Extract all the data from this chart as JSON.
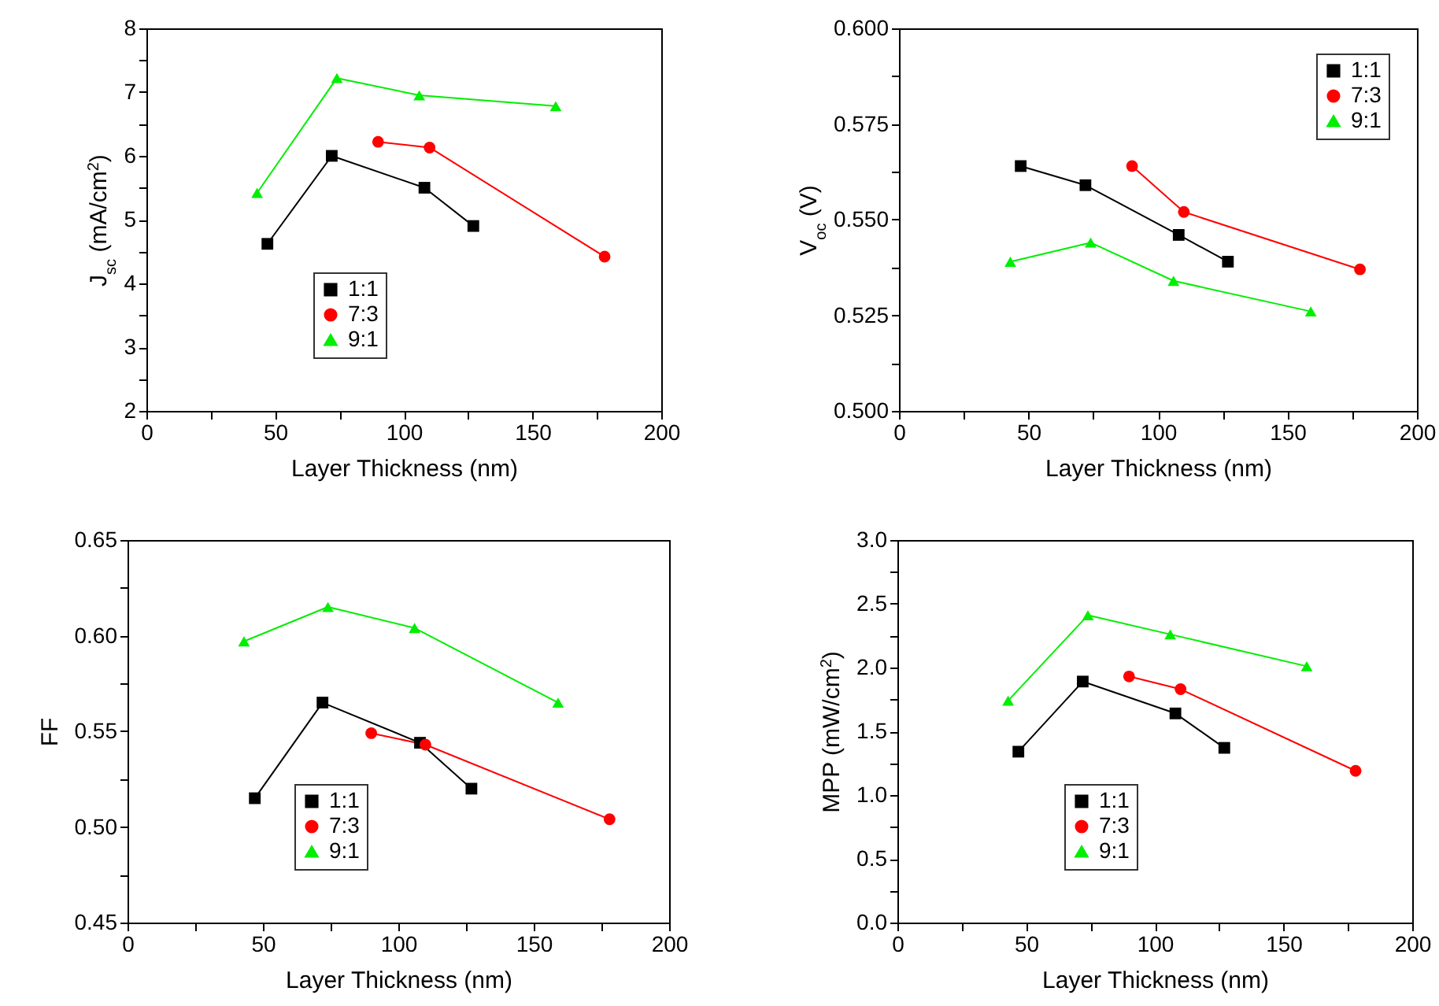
{
  "chart_data": [
    {
      "type": "line",
      "xlabel": "Layer Thickness (nm)",
      "ylabel": "J$_{sc}$ (mA/cm$^{2}$)",
      "xlim": [
        0,
        200
      ],
      "xticks": [
        0,
        {
          "value": 25,
          "label": null
        },
        50,
        {
          "value": 75,
          "label": null
        },
        100,
        {
          "value": 125,
          "label": null
        },
        150,
        {
          "value": 175,
          "label": null
        },
        200
      ],
      "ylim": [
        2,
        8
      ],
      "yticks": [
        2,
        {
          "value": 2.5,
          "label": null
        },
        3,
        {
          "value": 3.5,
          "label": null
        },
        4,
        {
          "value": 4.5,
          "label": null
        },
        5,
        {
          "value": 5.5,
          "label": null
        },
        6,
        {
          "value": 6.5,
          "label": null
        },
        7,
        {
          "value": 7.5,
          "label": null
        },
        8
      ],
      "legend": "bottom left",
      "line_style": "solid",
      "series": [
        {
          "name": "1:1",
          "color": "#000000",
          "marker": "square",
          "x": [
            47,
            72,
            108,
            127
          ],
          "values": [
            4.62,
            6.0,
            5.5,
            4.9
          ]
        },
        {
          "name": "7:3",
          "color": "#ff0000",
          "marker": "circle",
          "x": [
            90,
            110,
            178
          ],
          "values": [
            6.22,
            6.13,
            4.42
          ]
        },
        {
          "name": "9:1",
          "color": "#00ee00",
          "marker": "triangle",
          "x": [
            43,
            74,
            106,
            159
          ],
          "values": [
            5.42,
            7.22,
            6.95,
            6.78
          ]
        }
      ]
    },
    {
      "type": "line",
      "xlabel": "Layer Thickness (nm)",
      "ylabel": "V$_{oc}$ (V)",
      "xlim": [
        0,
        200
      ],
      "xticks": [
        0,
        {
          "value": 25,
          "label": null
        },
        50,
        {
          "value": 75,
          "label": null
        },
        100,
        {
          "value": 125,
          "label": null
        },
        150,
        {
          "value": 175,
          "label": null
        },
        200
      ],
      "ylim": [
        0.5,
        0.6
      ],
      "yticks": [
        {
          "value": 0.5,
          "label": "0.500"
        },
        {
          "value": 0.5125,
          "label": null
        },
        {
          "value": 0.525,
          "label": "0.525"
        },
        {
          "value": 0.5375,
          "label": null
        },
        {
          "value": 0.55,
          "label": "0.550"
        },
        {
          "value": 0.5625,
          "label": null
        },
        {
          "value": 0.575,
          "label": "0.575"
        },
        {
          "value": 0.5875,
          "label": null
        },
        {
          "value": 0.6,
          "label": "0.600"
        }
      ],
      "legend": "top right",
      "line_style": "solid",
      "series": [
        {
          "name": "1:1",
          "color": "#000000",
          "marker": "square",
          "x": [
            47,
            72,
            108,
            127
          ],
          "values": [
            0.564,
            0.559,
            0.546,
            0.539
          ]
        },
        {
          "name": "7:3",
          "color": "#ff0000",
          "marker": "circle",
          "x": [
            90,
            110,
            178
          ],
          "values": [
            0.564,
            0.552,
            0.537
          ]
        },
        {
          "name": "9:1",
          "color": "#00ee00",
          "marker": "triangle",
          "x": [
            43,
            74,
            106,
            159
          ],
          "values": [
            0.539,
            0.544,
            0.534,
            0.526
          ]
        }
      ]
    },
    {
      "type": "line",
      "xlabel": "Layer Thickness (nm)",
      "ylabel": "FF",
      "xlim": [
        0,
        200
      ],
      "xticks": [
        0,
        {
          "value": 25,
          "label": null
        },
        50,
        {
          "value": 75,
          "label": null
        },
        100,
        {
          "value": 125,
          "label": null
        },
        150,
        {
          "value": 175,
          "label": null
        },
        200
      ],
      "ylim": [
        0.45,
        0.65
      ],
      "yticks": [
        {
          "value": 0.45,
          "label": "0.45"
        },
        {
          "value": 0.475,
          "label": null
        },
        {
          "value": 0.5,
          "label": "0.50"
        },
        {
          "value": 0.525,
          "label": null
        },
        {
          "value": 0.55,
          "label": "0.55"
        },
        {
          "value": 0.575,
          "label": null
        },
        {
          "value": 0.6,
          "label": "0.60"
        },
        {
          "value": 0.625,
          "label": null
        },
        {
          "value": 0.65,
          "label": "0.65"
        }
      ],
      "legend": "bottom left",
      "line_style": "solid",
      "series": [
        {
          "name": "1:1",
          "color": "#000000",
          "marker": "square",
          "x": [
            47,
            72,
            108,
            127
          ],
          "values": [
            0.515,
            0.565,
            0.544,
            0.52
          ]
        },
        {
          "name": "7:3",
          "color": "#ff0000",
          "marker": "circle",
          "x": [
            90,
            110,
            178
          ],
          "values": [
            0.549,
            0.543,
            0.504
          ]
        },
        {
          "name": "9:1",
          "color": "#00ee00",
          "marker": "triangle",
          "x": [
            43,
            74,
            106,
            159
          ],
          "values": [
            0.597,
            0.615,
            0.604,
            0.565
          ]
        }
      ]
    },
    {
      "type": "line",
      "xlabel": "Layer Thickness (nm)",
      "ylabel": "MPP (mW/cm$^{2}$)",
      "xlim": [
        0,
        200
      ],
      "xticks": [
        0,
        {
          "value": 25,
          "label": null
        },
        50,
        {
          "value": 75,
          "label": null
        },
        100,
        {
          "value": 125,
          "label": null
        },
        150,
        {
          "value": 175,
          "label": null
        },
        200
      ],
      "ylim": [
        0,
        3
      ],
      "yticks": [
        {
          "value": 0,
          "label": "0.0"
        },
        {
          "value": 0.25,
          "label": null
        },
        {
          "value": 0.5,
          "label": "0.5"
        },
        {
          "value": 0.75,
          "label": null
        },
        {
          "value": 1,
          "label": "1.0"
        },
        {
          "value": 1.25,
          "label": null
        },
        {
          "value": 1.5,
          "label": "1.5"
        },
        {
          "value": 1.75,
          "label": null
        },
        {
          "value": 2,
          "label": "2.0"
        },
        {
          "value": 2.25,
          "label": null
        },
        {
          "value": 2.5,
          "label": "2.5"
        },
        {
          "value": 2.75,
          "label": null
        },
        {
          "value": 3,
          "label": "3.0"
        }
      ],
      "legend": "bottom left",
      "line_style": "solid",
      "series": [
        {
          "name": "1:1",
          "color": "#000000",
          "marker": "square",
          "x": [
            47,
            72,
            108,
            127
          ],
          "values": [
            1.34,
            1.89,
            1.64,
            1.37
          ]
        },
        {
          "name": "7:3",
          "color": "#ff0000",
          "marker": "circle",
          "x": [
            90,
            110,
            178
          ],
          "values": [
            1.93,
            1.83,
            1.19
          ]
        },
        {
          "name": "9:1",
          "color": "#00ee00",
          "marker": "triangle",
          "x": [
            43,
            74,
            106,
            159
          ],
          "values": [
            1.74,
            2.41,
            2.26,
            2.01
          ]
        }
      ]
    }
  ]
}
